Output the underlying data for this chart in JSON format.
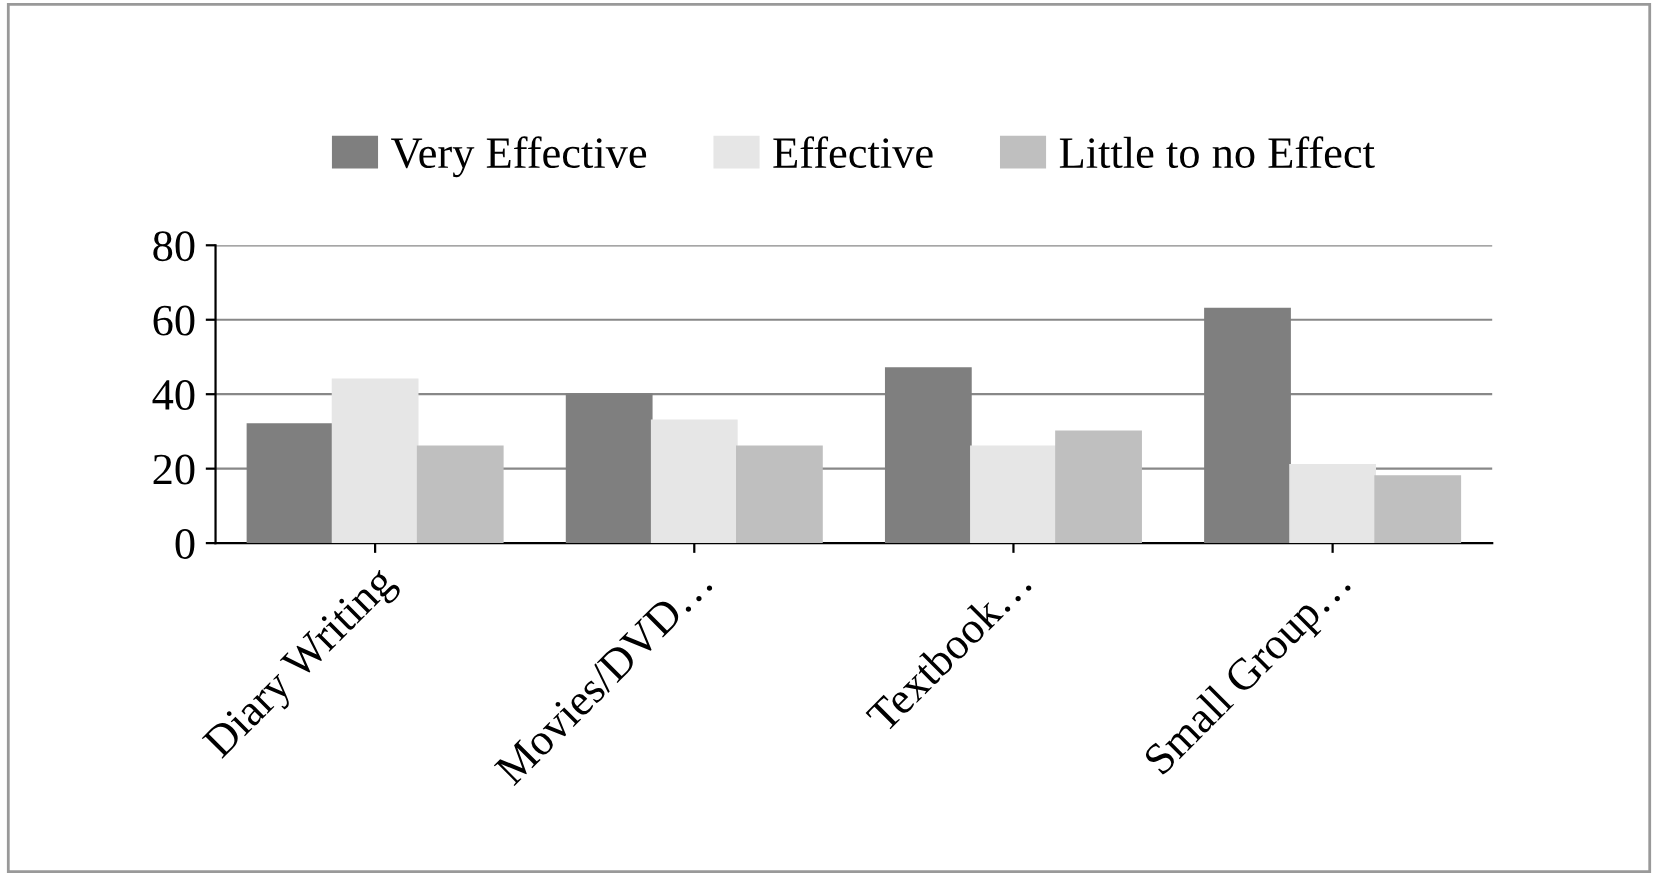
{
  "chart_data": {
    "type": "bar",
    "categories": [
      "Diary Writing",
      "Movies/DVD…",
      "Textbook…",
      "Small Group…"
    ],
    "series": [
      {
        "name": "Very Effective",
        "color": "#7f7f7f",
        "values": [
          32,
          40,
          47,
          63
        ]
      },
      {
        "name": "Effective",
        "color": "#e6e6e6",
        "values": [
          44,
          33,
          26,
          21
        ]
      },
      {
        "name": "Little to no Effect",
        "color": "#bfbfbf",
        "values": [
          26,
          26,
          30,
          18
        ]
      }
    ],
    "ylim": [
      0,
      80
    ],
    "yticks": [
      0,
      20,
      40,
      60,
      80
    ],
    "grid": "y",
    "legend": "top"
  }
}
